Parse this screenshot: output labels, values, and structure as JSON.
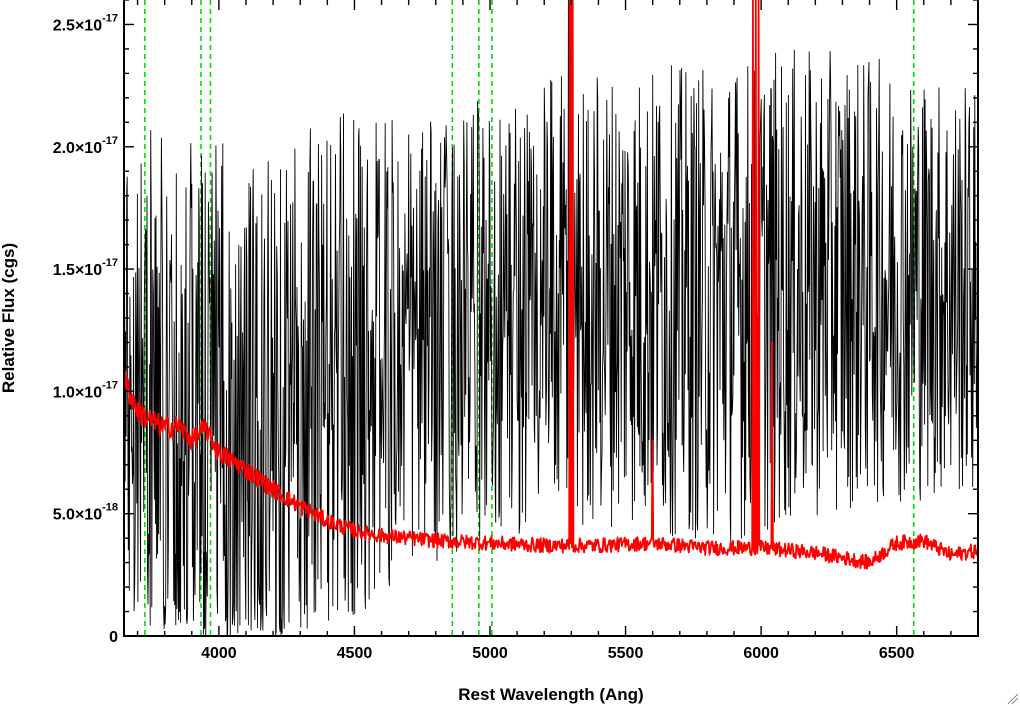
{
  "chart_data": {
    "type": "line",
    "title": "",
    "xlabel": "Rest Wavelength (Ang)",
    "ylabel": "Relative Flux (cgs)",
    "xlim": [
      3650,
      6800
    ],
    "ylim": [
      0,
      2.6e-17
    ],
    "x_ticks": [
      4000,
      4500,
      5000,
      5500,
      6000,
      6500
    ],
    "y_ticks": [
      {
        "value": 0,
        "mantissa": "0",
        "exponent": ""
      },
      {
        "value": 5e-18,
        "mantissa": "5.0×10",
        "exponent": "-18"
      },
      {
        "value": 1e-17,
        "mantissa": "1.0×10",
        "exponent": "-17"
      },
      {
        "value": 1.5e-17,
        "mantissa": "1.5×10",
        "exponent": "-17"
      },
      {
        "value": 2e-17,
        "mantissa": "2.0×10",
        "exponent": "-17"
      },
      {
        "value": 2.5e-17,
        "mantissa": "2.5×10",
        "exponent": "-17"
      }
    ],
    "grid": false,
    "vlines": [
      3727,
      3934,
      3969,
      4861,
      4959,
      5007,
      6563
    ],
    "series": [
      {
        "color": "#000000",
        "kind": "noisy-spectrum",
        "anchors": [
          [
            3650,
            1.05e-17
          ],
          [
            3700,
            1.1e-17
          ],
          [
            3800,
            9.5e-18
          ],
          [
            3900,
            9e-18
          ],
          [
            4000,
            8.5e-18
          ],
          [
            4200,
            8.8e-18
          ],
          [
            4500,
            1.1e-17
          ],
          [
            4800,
            1.2e-17
          ],
          [
            5000,
            1.3e-17
          ],
          [
            5200,
            1.35e-17
          ],
          [
            5500,
            1.4e-17
          ],
          [
            5800,
            1.35e-17
          ],
          [
            6000,
            1.4e-17
          ],
          [
            6300,
            1.45e-17
          ],
          [
            6500,
            1.45e-17
          ],
          [
            6800,
            1.4e-17
          ]
        ],
        "noise_amplitude": [
          [
            3650,
            1e-17
          ],
          [
            4000,
            1.2e-17
          ],
          [
            4400,
            1.1e-17
          ],
          [
            4800,
            9e-18
          ],
          [
            5500,
            9.5e-18
          ],
          [
            6000,
            1e-17
          ],
          [
            6500,
            9e-18
          ],
          [
            6800,
            8.5e-18
          ]
        ],
        "spikes": [
          [
            5290,
            2.6e-17
          ],
          [
            5300,
            2.6e-17
          ],
          [
            5980,
            2.6e-17
          ],
          [
            5620,
            2.1e-17
          ]
        ],
        "points": 1600
      },
      {
        "color": "#ff0000",
        "kind": "smoothed-spectrum",
        "anchors": [
          [
            3650,
            1.05e-17
          ],
          [
            3700,
            9.2e-18
          ],
          [
            3750,
            8.8e-18
          ],
          [
            3800,
            8.5e-18
          ],
          [
            3850,
            8.6e-18
          ],
          [
            3900,
            8e-18
          ],
          [
            3950,
            8.5e-18
          ],
          [
            4000,
            7.5e-18
          ],
          [
            4100,
            6.8e-18
          ],
          [
            4200,
            6e-18
          ],
          [
            4300,
            5.3e-18
          ],
          [
            4400,
            4.7e-18
          ],
          [
            4500,
            4.3e-18
          ],
          [
            4600,
            4.1e-18
          ],
          [
            4700,
            4e-18
          ],
          [
            4800,
            3.9e-18
          ],
          [
            5000,
            3.8e-18
          ],
          [
            5200,
            3.7e-18
          ],
          [
            5400,
            3.7e-18
          ],
          [
            5600,
            3.8e-18
          ],
          [
            5800,
            3.6e-18
          ],
          [
            6000,
            3.6e-18
          ],
          [
            6200,
            3.4e-18
          ],
          [
            6400,
            3e-18
          ],
          [
            6500,
            3.8e-18
          ],
          [
            6600,
            3.9e-18
          ],
          [
            6700,
            3.3e-18
          ],
          [
            6800,
            3.5e-18
          ]
        ],
        "noise_amplitude": [
          [
            3650,
            5e-19
          ],
          [
            4500,
            3e-19
          ],
          [
            6800,
            3e-19
          ]
        ],
        "spikes": [
          [
            5295,
            2.6e-17
          ],
          [
            5300,
            2.6e-17
          ],
          [
            5305,
            2.6e-17
          ],
          [
            5600,
            8e-18
          ],
          [
            5970,
            2.6e-17
          ],
          [
            5980,
            2.6e-17
          ],
          [
            5990,
            2.6e-17
          ],
          [
            6040,
            1.2e-17
          ]
        ],
        "points": 1200
      }
    ]
  }
}
